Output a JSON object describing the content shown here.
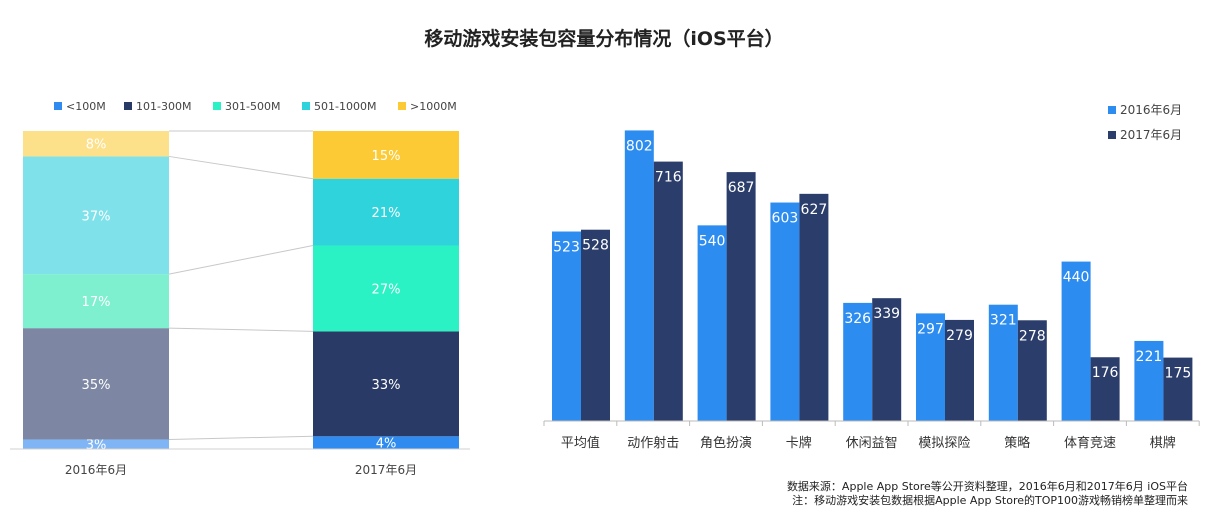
{
  "page": {
    "title": "移动游戏安装包容量分布情况（iOS平台）",
    "source_note": "数据来源：Apple App Store等公开资料整理，2016年6月和2017年6月 iOS平台",
    "note": "注：移动游戏安装包数据根据Apple App Store的TOP100游戏畅销榜单整理而来"
  },
  "chart_data": [
    {
      "type": "bar",
      "stacked": "percent",
      "categories": [
        "2016年6月",
        "2017年6月"
      ],
      "series": [
        {
          "name": "<100M",
          "values": [
            3,
            4
          ],
          "labels": [
            "3%",
            "4%"
          ]
        },
        {
          "name": "101-300M",
          "values": [
            35,
            33
          ],
          "labels": [
            "35%",
            "33%"
          ]
        },
        {
          "name": "301-500M",
          "values": [
            17,
            27
          ],
          "labels": [
            "17%",
            "27%"
          ]
        },
        {
          "name": "501-1000M",
          "values": [
            37,
            21
          ],
          "labels": [
            "37%",
            "21%"
          ]
        },
        {
          "name": ">1000M",
          "values": [
            8,
            15
          ],
          "labels": [
            "8%",
            "15%"
          ]
        }
      ],
      "legend_position": "top",
      "colors": {
        "2016年6月": [
          "#7fb5f5",
          "#7d87a3",
          "#7ff0cf",
          "#7fe2ea",
          "#fde08a"
        ],
        "2017年6月": [
          "#2f8bef",
          "#2a3a66",
          "#2af2c4",
          "#2ed3dc",
          "#fbca35"
        ]
      },
      "ylim": [
        0,
        100
      ]
    },
    {
      "type": "bar",
      "categories": [
        "平均值",
        "动作射击",
        "角色扮演",
        "卡牌",
        "休闲益智",
        "模拟探险",
        "策略",
        "体育竞速",
        "棋牌"
      ],
      "series": [
        {
          "name": "2016年6月",
          "color": "#2d8cf0",
          "values": [
            523,
            802,
            540,
            603,
            326,
            297,
            321,
            440,
            221
          ]
        },
        {
          "name": "2017年6月",
          "color": "#2b3d6b",
          "values": [
            528,
            716,
            687,
            627,
            339,
            279,
            278,
            176,
            175
          ]
        }
      ],
      "legend_position": "top-right",
      "grid": false
    }
  ]
}
